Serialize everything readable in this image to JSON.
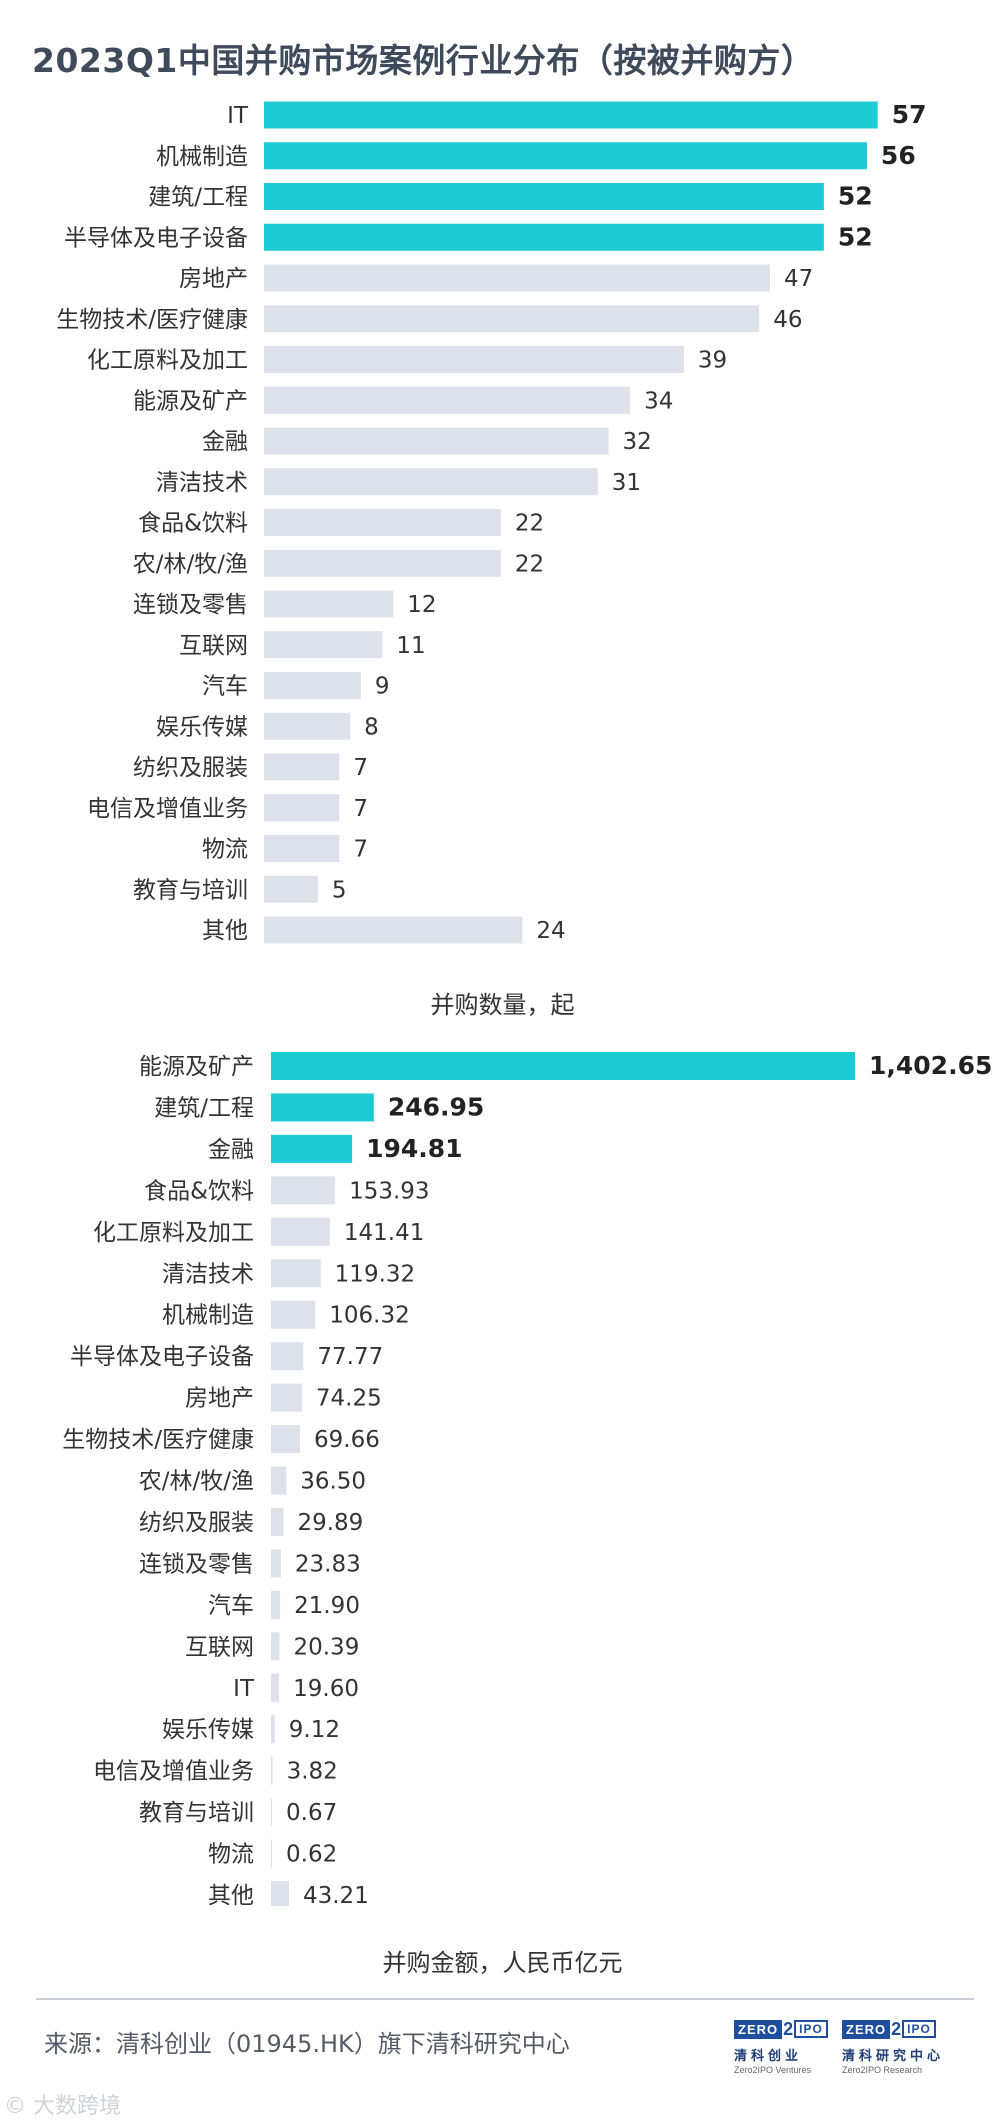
{
  "title": "2023Q1中国并购市场案例行业分布（按被并购方）",
  "chart_data": [
    {
      "type": "bar",
      "orientation": "horizontal",
      "categories": [
        "IT",
        "机械制造",
        "建筑/工程",
        "半导体及电子设备",
        "房地产",
        "生物技术/医疗健康",
        "化工原料及加工",
        "能源及矿产",
        "金融",
        "清洁技术",
        "食品&饮料",
        "农/林/牧/渔",
        "连锁及零售",
        "互联网",
        "汽车",
        "娱乐传媒",
        "纺织及服装",
        "电信及增值业务",
        "物流",
        "教育与培训",
        "其他"
      ],
      "values": [
        57,
        56,
        52,
        52,
        47,
        46,
        39,
        34,
        32,
        31,
        22,
        22,
        12,
        11,
        9,
        8,
        7,
        7,
        7,
        5,
        24
      ],
      "value_labels": [
        "57",
        "56",
        "52",
        "52",
        "47",
        "46",
        "39",
        "34",
        "32",
        "31",
        "22",
        "22",
        "12",
        "11",
        "9",
        "8",
        "7",
        "7",
        "7",
        "5",
        "24"
      ],
      "highlight_top": 4,
      "xlabel": "并购数量，起",
      "xlim": [
        0,
        60
      ],
      "grid": false
    },
    {
      "type": "bar",
      "orientation": "horizontal",
      "categories": [
        "能源及矿产",
        "建筑/工程",
        "金融",
        "食品&饮料",
        "化工原料及加工",
        "清洁技术",
        "机械制造",
        "半导体及电子设备",
        "房地产",
        "生物技术/医疗健康",
        "农/林/牧/渔",
        "纺织及服装",
        "连锁及零售",
        "汽车",
        "互联网",
        "IT",
        "娱乐传媒",
        "电信及增值业务",
        "教育与培训",
        "物流",
        "其他"
      ],
      "values": [
        1402.65,
        246.95,
        194.81,
        153.93,
        141.41,
        119.32,
        106.32,
        77.77,
        74.25,
        69.66,
        36.5,
        29.89,
        23.83,
        21.9,
        20.39,
        19.6,
        9.12,
        3.82,
        0.67,
        0.62,
        43.21
      ],
      "value_labels": [
        "1,402.65",
        "246.95",
        "194.81",
        "153.93",
        "141.41",
        "119.32",
        "106.32",
        "77.77",
        "74.25",
        "69.66",
        "36.50",
        "29.89",
        "23.83",
        "21.90",
        "20.39",
        "19.60",
        "9.12",
        "3.82",
        "0.67",
        "0.62",
        "43.21"
      ],
      "highlight_top": 3,
      "xlabel": "并购金额，人民币亿元",
      "xlim": [
        0,
        1402.65
      ],
      "grid": false
    }
  ],
  "colors": {
    "highlight": "#1ecbd5",
    "bar": "#dde1e9",
    "label": "#333333",
    "title": "#3f4a5a"
  },
  "source": "来源：清科创业（01945.HK）旗下清科研究中心",
  "logos": [
    {
      "top": "ZERO",
      "mid": "2",
      "box": "IPO",
      "cn": "清科创业",
      "en": "Zero2IPO Ventures"
    },
    {
      "top": "ZERO",
      "mid": "2",
      "box": "IPO",
      "cn": "清科研究中心",
      "en": "Zero2IPO Research"
    }
  ],
  "watermark": "© 大数跨境"
}
